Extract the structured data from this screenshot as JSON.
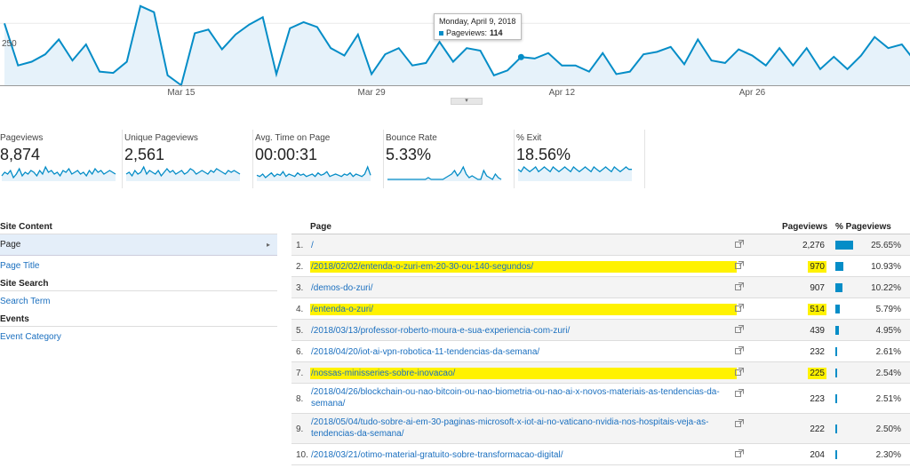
{
  "chart": {
    "y_label": "250",
    "x_ticks": [
      "Mar 15",
      "Mar 29",
      "Apr 12",
      "Apr 26"
    ],
    "x_tick_days": [
      13,
      27,
      41,
      55
    ],
    "line_color": "#058dc7",
    "fill_color": "#e6f2fa",
    "ylim": [
      0,
      330
    ],
    "values": [
      250,
      80,
      95,
      125,
      185,
      100,
      165,
      55,
      50,
      95,
      320,
      295,
      40,
      0,
      210,
      225,
      145,
      205,
      245,
      275,
      45,
      230,
      255,
      235,
      150,
      120,
      205,
      45,
      125,
      150,
      80,
      90,
      175,
      95,
      150,
      140,
      40,
      60,
      114,
      108,
      130,
      80,
      80,
      55,
      130,
      45,
      55,
      125,
      135,
      155,
      85,
      185,
      100,
      90,
      145,
      120,
      80,
      150,
      80,
      150,
      65,
      115,
      65,
      120,
      195,
      150,
      165,
      95,
      105,
      95,
      97,
      98
    ],
    "tooltip_index": 38,
    "tooltip": {
      "date": "Monday, April 9, 2018",
      "metric": "Pageviews:",
      "value": "114"
    }
  },
  "metrics": [
    {
      "label": "Pageviews",
      "value": "8,874",
      "spark": [
        3,
        5,
        4,
        6,
        2,
        4,
        7,
        3,
        5,
        4,
        6,
        5,
        3,
        6,
        4,
        8,
        5,
        6,
        4,
        5,
        3,
        6,
        5,
        7,
        4,
        5,
        6,
        4,
        5,
        3,
        6,
        4,
        7,
        5,
        6,
        4,
        5,
        6,
        5,
        4
      ]
    },
    {
      "label": "Unique Pageviews",
      "value": "2,561",
      "spark": [
        4,
        5,
        3,
        6,
        4,
        5,
        8,
        4,
        6,
        5,
        4,
        6,
        3,
        5,
        7,
        5,
        6,
        4,
        5,
        6,
        4,
        5,
        7,
        6,
        4,
        5,
        6,
        5,
        4,
        6,
        5,
        7,
        6,
        5,
        4,
        6,
        5,
        6,
        5,
        4
      ]
    },
    {
      "label": "Avg. Time on Page",
      "value": "00:00:31",
      "spark": [
        5,
        4,
        6,
        3,
        5,
        7,
        4,
        6,
        5,
        8,
        4,
        6,
        5,
        4,
        7,
        5,
        6,
        4,
        5,
        6,
        4,
        7,
        5,
        6,
        8,
        4,
        5,
        6,
        5,
        4,
        6,
        5,
        7,
        4,
        6,
        5,
        4,
        6,
        12,
        5
      ]
    },
    {
      "label": "Bounce Rate",
      "value": "5.33%",
      "spark": [
        1,
        1,
        1,
        1,
        1,
        1,
        1,
        1,
        1,
        1,
        1,
        1,
        1,
        1,
        2,
        1,
        1,
        1,
        1,
        1,
        2,
        3,
        4,
        6,
        3,
        5,
        8,
        4,
        2,
        3,
        2,
        1,
        1,
        6,
        3,
        2,
        1,
        4,
        2,
        1
      ]
    },
    {
      "label": "% Exit",
      "value": "18.56%",
      "spark": [
        5,
        4,
        6,
        5,
        4,
        5,
        6,
        4,
        5,
        6,
        5,
        4,
        6,
        5,
        4,
        5,
        6,
        5,
        4,
        6,
        5,
        4,
        5,
        6,
        5,
        4,
        6,
        5,
        4,
        5,
        6,
        5,
        4,
        6,
        5,
        4,
        5,
        6,
        5,
        5
      ]
    }
  ],
  "left_nav": {
    "site_content": "Site Content",
    "page": "Page",
    "page_title": "Page Title",
    "site_search": "Site Search",
    "search_term": "Search Term",
    "events": "Events",
    "event_category": "Event Category"
  },
  "table": {
    "col_page": "Page",
    "col_pageviews": "Pageviews",
    "col_pct": "% Pageviews",
    "rows": [
      {
        "num": "1.",
        "page": "/",
        "pageviews": "2,276",
        "pct": "25.65%",
        "share": 0.2565
      },
      {
        "num": "2.",
        "page": "/2018/02/02/entenda-o-zuri-em-20-30-ou-140-segundos/",
        "pageviews": "970",
        "pct": "10.93%",
        "share": 0.1093
      },
      {
        "num": "3.",
        "page": "/demos-do-zuri/",
        "pageviews": "907",
        "pct": "10.22%",
        "share": 0.1022
      },
      {
        "num": "4.",
        "page": "/entenda-o-zuri/",
        "pageviews": "514",
        "pct": "5.79%",
        "share": 0.0579
      },
      {
        "num": "5.",
        "page": "/2018/03/13/professor-roberto-moura-e-sua-experiencia-com-zuri/",
        "pageviews": "439",
        "pct": "4.95%",
        "share": 0.0495
      },
      {
        "num": "6.",
        "page": "/2018/04/20/iot-ai-vpn-robotica-11-tendencias-da-semana/",
        "pageviews": "232",
        "pct": "2.61%",
        "share": 0.0261
      },
      {
        "num": "7.",
        "page": "/nossas-minisseries-sobre-inovacao/",
        "pageviews": "225",
        "pct": "2.54%",
        "share": 0.0254
      },
      {
        "num": "8.",
        "page": "/2018/04/26/blockchain-ou-nao-bitcoin-ou-nao-biometria-ou-nao-ai-x-novos-materiais-as-tendencias-da-semana/",
        "pageviews": "223",
        "pct": "2.51%",
        "share": 0.0251
      },
      {
        "num": "9.",
        "page": "/2018/05/04/tudo-sobre-ai-em-30-paginas-microsoft-x-iot-ai-no-vaticano-nvidia-nos-hospitais-veja-as-tendencias-da-semana/",
        "pageviews": "222",
        "pct": "2.50%",
        "share": 0.025
      },
      {
        "num": "10.",
        "page": "/2018/03/21/otimo-material-gratuito-sobre-transformacao-digital/",
        "pageviews": "204",
        "pct": "2.30%",
        "share": 0.023
      }
    ]
  }
}
